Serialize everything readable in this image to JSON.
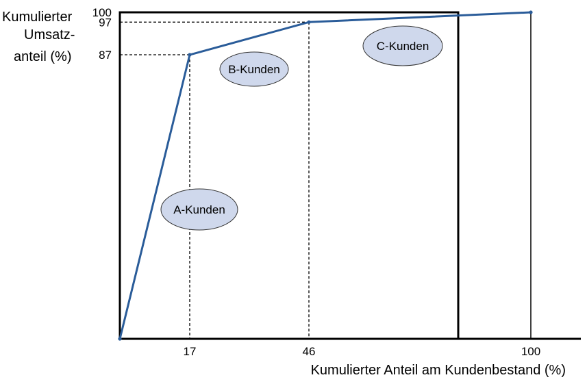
{
  "chart_data": {
    "type": "line",
    "title": "",
    "ylabel_lines": [
      "Kumulierter",
      "Umsatz-",
      "anteil (%)"
    ],
    "xlabel": "Kumulierter Anteil am Kundenbestand (%)",
    "xlim": [
      0,
      100
    ],
    "ylim": [
      0,
      100
    ],
    "x_ticks": [
      "17",
      "46",
      "100"
    ],
    "y_ticks": [
      "87",
      "97",
      "100"
    ],
    "series": [
      {
        "x": [
          0,
          17,
          46,
          100
        ],
        "y": [
          0,
          87,
          97,
          100
        ]
      }
    ],
    "segments": [
      {
        "label": "A-Kunden"
      },
      {
        "label": "B-Kunden"
      },
      {
        "label": "C-Kunden"
      }
    ],
    "grid": false
  },
  "colors": {
    "line": "#2a5c99",
    "ellipse_fill": "#cfd8ec",
    "ellipse_stroke": "#333333",
    "axis": "#000000"
  }
}
